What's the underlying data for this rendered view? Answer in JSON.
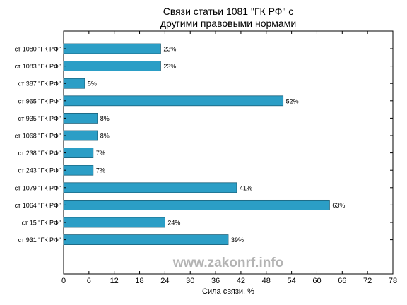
{
  "chart_data": {
    "type": "bar",
    "orientation": "horizontal",
    "title_line1": "Связи статьи 1081 \"ГК РФ\" с",
    "title_line2": "другими правовыми нормами",
    "xlabel": "Сила связи, %",
    "ylabel": "",
    "xlim": [
      0,
      78
    ],
    "x_ticks": [
      0,
      6,
      12,
      18,
      24,
      30,
      36,
      42,
      48,
      54,
      60,
      66,
      72,
      78
    ],
    "grid": false,
    "bar_color": "#2b9ec6",
    "bar_edge_color": "#1a5f78",
    "categories": [
      "ст 1080 \"ГК РФ\"",
      "ст 1083 \"ГК РФ\"",
      "ст 387 \"ГК РФ\"",
      "ст 965 \"ГК РФ\"",
      "ст 935 \"ГК РФ\"",
      "ст 1068 \"ГК РФ\"",
      "ст 238 \"ГК РФ\"",
      "ст 243 \"ГК РФ\"",
      "ст 1079 \"ГК РФ\"",
      "ст 1064 \"ГК РФ\"",
      "ст 15 \"ГК РФ\"",
      "ст 931 \"ГК РФ\""
    ],
    "values": [
      23,
      23,
      5,
      52,
      8,
      8,
      7,
      7,
      41,
      63,
      24,
      39
    ],
    "value_labels": [
      "23%",
      "23%",
      "5%",
      "52%",
      "8%",
      "8%",
      "7%",
      "7%",
      "41%",
      "63%",
      "24%",
      "39%"
    ]
  },
  "watermark": "www.zakonrf.info"
}
